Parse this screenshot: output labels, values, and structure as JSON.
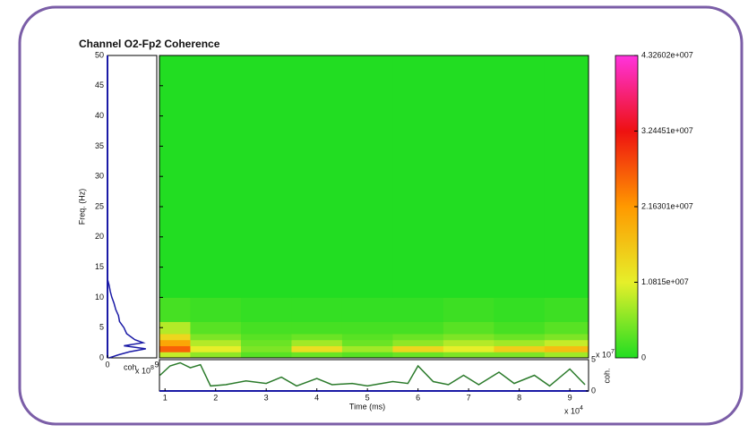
{
  "chart_data": [
    {
      "type": "heatmap",
      "title": "Channel O2-Fp2 Coherence",
      "ylabel": "Freq. (Hz)",
      "x_edges": [
        0.89,
        1.5,
        2.5,
        3.5,
        4.5,
        5.5,
        6.5,
        7.5,
        8.5,
        9.37
      ],
      "y_edges": [
        0,
        1,
        2,
        3,
        4,
        6,
        10,
        50
      ],
      "z": [
        [
          9000000,
          6000000,
          3000000,
          4000000,
          3000000,
          4000000,
          5000000,
          5000000,
          7000000
        ],
        [
          26000000,
          11000000,
          5000000,
          13000000,
          7000000,
          14000000,
          11000000,
          15000000,
          17000000
        ],
        [
          20000000,
          8000000,
          4000000,
          7000000,
          4000000,
          6000000,
          8000000,
          7000000,
          9000000
        ],
        [
          14000000,
          5000000,
          3000000,
          4000000,
          3000000,
          4000000,
          5000000,
          4000000,
          5000000
        ],
        [
          8000000,
          3000000,
          2000000,
          2000000,
          2000000,
          2000000,
          3000000,
          2000000,
          3000000
        ],
        [
          2000000,
          1500000,
          1000000,
          1000000,
          1000000,
          1000000,
          1500000,
          1000000,
          1500000
        ],
        [
          0,
          0,
          0,
          0,
          0,
          0,
          0,
          0,
          0
        ]
      ],
      "xlim": [
        0.89,
        9.37
      ],
      "ylim": [
        0,
        50
      ],
      "yticks": [
        0,
        5,
        10,
        15,
        20,
        25,
        30,
        35,
        40,
        45,
        50
      ],
      "colormap": [
        "#22dd22",
        "#e6ef2a",
        "#ff9900",
        "#ee1111",
        "#ff33dd"
      ],
      "colorbar_lim": [
        0,
        43260200
      ],
      "colorbar_ticks": [
        0,
        {
          "value": 10815000,
          "label": "1.0815e+007"
        },
        {
          "value": 21630100,
          "label": "2.16301e+007"
        },
        {
          "value": 32445100,
          "label": "3.24451e+007"
        },
        {
          "value": 43260200,
          "label": "4.32602e+007"
        }
      ]
    },
    {
      "type": "hline",
      "xlabel": "coh",
      "x_scale_label": "x 10",
      "x_scale_exp": "8",
      "y": [
        0,
        0.5,
        1,
        1.5,
        2,
        2.5,
        3,
        4,
        5,
        6,
        7,
        8,
        9,
        10,
        11,
        12,
        13,
        50
      ],
      "values": [
        0.3,
        2,
        4,
        7,
        3,
        6.5,
        5,
        3.5,
        3,
        2.2,
        2,
        1.5,
        1.2,
        0.8,
        0.5,
        0.3,
        0,
        0
      ],
      "xlim": [
        0,
        9
      ],
      "xticks": [
        0,
        9
      ],
      "ylim": [
        0,
        50
      ],
      "color": "#1a1aa6"
    },
    {
      "type": "line",
      "xlabel": "Time (ms)",
      "x_scale_label": "x 10",
      "x_scale_exp": "4",
      "ylabel": "coh.",
      "y_scale_label": "x 10",
      "y_scale_exp": "7",
      "x": [
        0.9,
        1.1,
        1.3,
        1.5,
        1.7,
        1.9,
        2.2,
        2.6,
        3.0,
        3.3,
        3.6,
        4.0,
        4.3,
        4.7,
        5.0,
        5.5,
        5.8,
        6.0,
        6.3,
        6.6,
        6.9,
        7.2,
        7.6,
        7.9,
        8.3,
        8.6,
        9.0,
        9.3
      ],
      "values": [
        2.5,
        4,
        4.5,
        3.7,
        4.2,
        0.8,
        1,
        1.6,
        1.2,
        2.2,
        0.8,
        2,
        1,
        1.2,
        0.8,
        1.5,
        1.2,
        4,
        1.5,
        1,
        2.5,
        1,
        3,
        1.2,
        2.5,
        0.8,
        3.5,
        1
      ],
      "xlim": [
        0.89,
        9.37
      ],
      "xticks": [
        1,
        2,
        3,
        4,
        5,
        6,
        7,
        8,
        9
      ],
      "ylim": [
        0,
        5
      ],
      "yticks": [
        0,
        5
      ],
      "color": "#2a7a2a"
    }
  ]
}
